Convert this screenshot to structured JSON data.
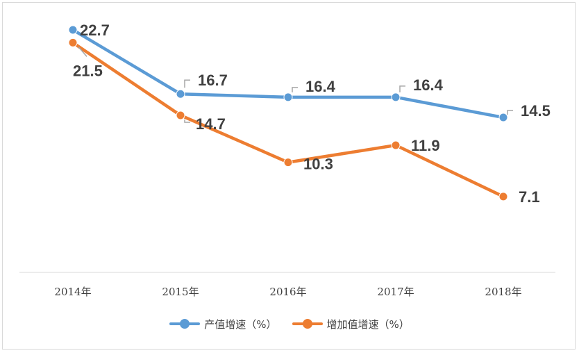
{
  "chart_data": {
    "type": "line",
    "categories": [
      "2014年",
      "2015年",
      "2016年",
      "2017年",
      "2018年"
    ],
    "series": [
      {
        "name": "产值增速（%）",
        "values": [
          22.7,
          16.7,
          16.4,
          16.4,
          14.5
        ],
        "color": "#5b9bd5"
      },
      {
        "name": "增加值增速（%）",
        "values": [
          21.5,
          14.7,
          10.3,
          11.9,
          7.1
        ],
        "color": "#ed7d31"
      }
    ],
    "title": "",
    "xlabel": "",
    "ylabel": "",
    "ylim": [
      0,
      25
    ],
    "grid": false,
    "legend": "bottom",
    "data_labels": true,
    "leader_line_color": "#a6a6a6"
  }
}
